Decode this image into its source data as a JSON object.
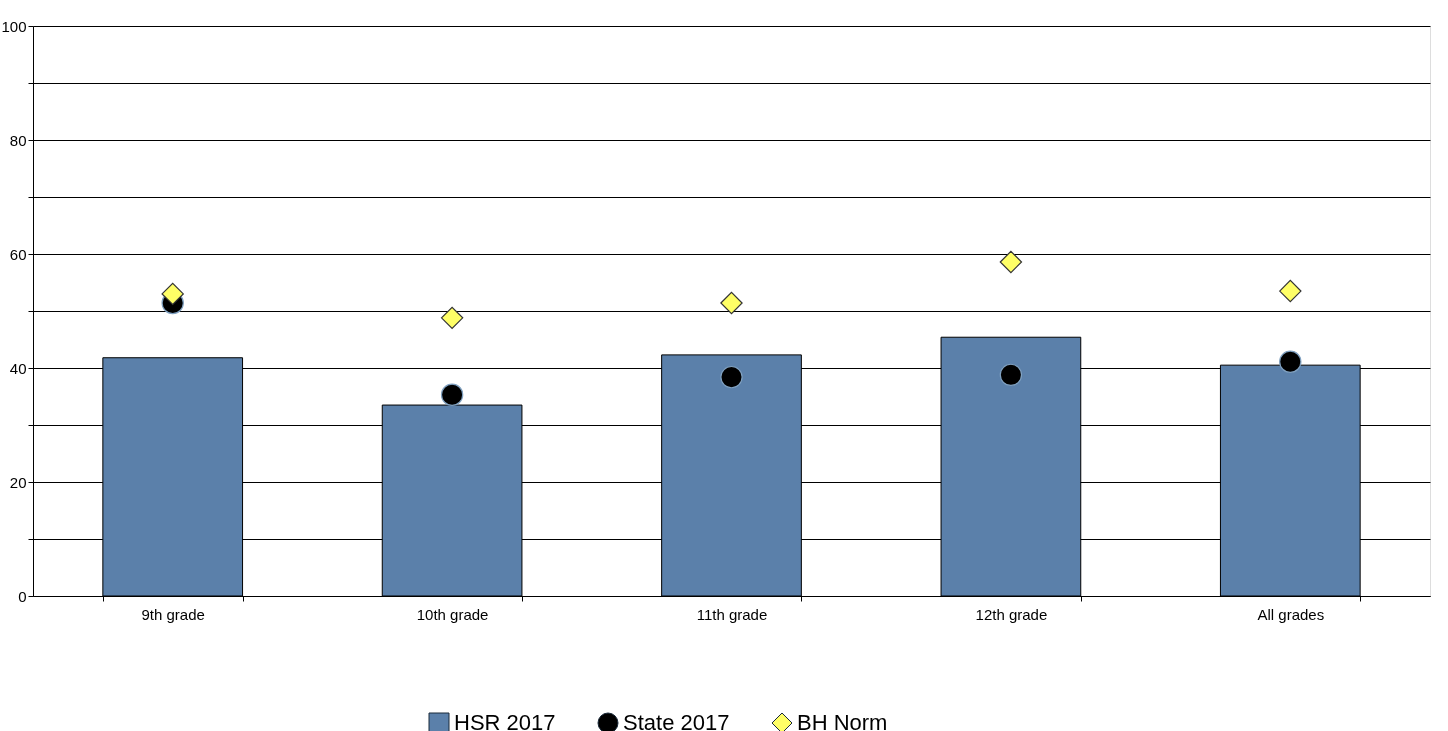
{
  "chart_data": {
    "type": "bar",
    "categories": [
      "9th grade",
      "10th grade",
      "11th grade",
      "12th grade",
      "All grades"
    ],
    "series": [
      {
        "name": "HSR 2017",
        "color": "#5b80aa",
        "values": [
          41.8,
          33.5,
          42.3,
          45.4,
          40.5
        ]
      },
      {
        "name": "State 2017",
        "type": "scatter",
        "marker": "circle",
        "color": "#000000",
        "values": [
          51.4,
          35.3,
          38.4,
          38.8,
          41.1
        ]
      },
      {
        "name": "BH Norm",
        "type": "scatter",
        "marker": "diamond",
        "color": "#ffff66",
        "values": [
          53.0,
          48.8,
          51.4,
          58.6,
          53.5
        ]
      }
    ],
    "ylim": [
      0,
      100
    ],
    "yticks": [
      0,
      {
        "value": 10,
        "label": null
      },
      20,
      {
        "value": 30,
        "label": null
      },
      40,
      {
        "value": 50,
        "label": null
      },
      60,
      {
        "value": 70,
        "label": null
      },
      80,
      {
        "value": 90,
        "label": null
      },
      100
    ],
    "grid": "y",
    "legend": "bottom"
  }
}
